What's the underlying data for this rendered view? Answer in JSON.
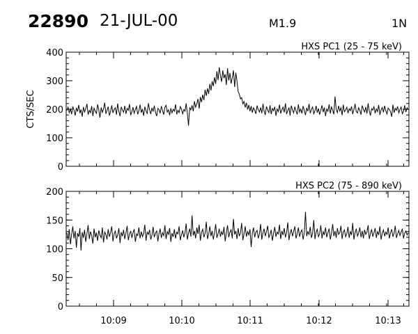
{
  "header": {
    "event_id": "22890",
    "date": "21-JUL-00",
    "flare_class": "M1.9",
    "location": "1N"
  },
  "chart_data": [
    {
      "type": "line",
      "title": "HXS PC1 (25 - 75 keV)",
      "ylabel": "CTS/SEC",
      "ylim": [
        0,
        400
      ],
      "yticks": [
        0,
        100,
        200,
        300,
        400
      ],
      "y_tick_labels": [
        "0",
        "100",
        "200",
        "300",
        "400"
      ],
      "xlim": [
        10.138,
        10.222
      ],
      "x_tick_labels": [
        "10:09",
        "10:10",
        "10:11",
        "10:12",
        "10:13"
      ],
      "series": [
        {
          "values": [
            195,
            207,
            188,
            201,
            183,
            210,
            197,
            178,
            205,
            192,
            215,
            186,
            199,
            174,
            208,
            190,
            202,
            219,
            181,
            196,
            188,
            211,
            176,
            204,
            193,
            185,
            217,
            198,
            171,
            206,
            189,
            201,
            223,
            184,
            196,
            209,
            178,
            192,
            214,
            187,
            199,
            205,
            181,
            220,
            193,
            176,
            208,
            197,
            189,
            212,
            184,
            203,
            196,
            218,
            179,
            191,
            207,
            186,
            199,
            210,
            182,
            195,
            216,
            188,
            201,
            177,
            209,
            194,
            185,
            221,
            198,
            183,
            205,
            192,
            213,
            189,
            176,
            203,
            199,
            186,
            211,
            195,
            181,
            207,
            214,
            190,
            198,
            179,
            204,
            187,
            200,
            193,
            217,
            182,
            196,
            188,
            209,
            201,
            184,
            199,
            193,
            221,
            186,
            143,
            205,
            198,
            214,
            193,
            228,
            207,
            219,
            236,
            202,
            243,
            225,
            251,
            232,
            268,
            247,
            273,
            254,
            289,
            266,
            298,
            281,
            312,
            289,
            333,
            302,
            347,
            318,
            296,
            336,
            309,
            323,
            285,
            344,
            301,
            327,
            290,
            311,
            336,
            278,
            328,
            297,
            262,
            253,
            236,
            241,
            219,
            227,
            206,
            223,
            199,
            215,
            193,
            211,
            188,
            205,
            197,
            184,
            213,
            199,
            190,
            206,
            186,
            219,
            194,
            180,
            210,
            197,
            188,
            214,
            183,
            203,
            195,
            209,
            177,
            201,
            192,
            216,
            185,
            198,
            207,
            189,
            221,
            183,
            195,
            206,
            178,
            213,
            198,
            187,
            209,
            194,
            182,
            217,
            190,
            201,
            185,
            211,
            196,
            179,
            205,
            193,
            219,
            186,
            199,
            208,
            184,
            195,
            212,
            188,
            203,
            181,
            197,
            214,
            190,
            206,
            176,
            201,
            193,
            217,
            185,
            208,
            197,
            182,
            245,
            199,
            188,
            212,
            194,
            205,
            179,
            216,
            191,
            198,
            207,
            186,
            202,
            195,
            210,
            183,
            199,
            219,
            192,
            187,
            205,
            196,
            181,
            213,
            200,
            190,
            208,
            185,
            221,
            194,
            178,
            202,
            197,
            209,
            186,
            201,
            192,
            215,
            180,
            198,
            206,
            189,
            212,
            195,
            183,
            204,
            199,
            191,
            174,
            216,
            188,
            203,
            196,
            210,
            187,
            199,
            208,
            184,
            193,
            214,
            190,
            205,
            198
          ]
        }
      ]
    },
    {
      "type": "line",
      "title": "HXS PC2 (75 - 890 keV)",
      "ylabel": "",
      "ylim": [
        0,
        200
      ],
      "yticks": [
        0,
        50,
        100,
        150,
        200
      ],
      "y_tick_labels": [
        "0",
        "50",
        "100",
        "150",
        "200"
      ],
      "xlim": [
        10.138,
        10.222
      ],
      "x_tick_labels": [
        "10:09",
        "10:10",
        "10:11",
        "10:12",
        "10:13"
      ],
      "series": [
        {
          "values": [
            128,
            115,
            134,
            108,
            125,
            139,
            118,
            131,
            102,
            127,
            121,
            136,
            97,
            129,
            119,
            133,
            112,
            126,
            141,
            117,
            130,
            123,
            109,
            135,
            120,
            128,
            114,
            132,
            124,
            119,
            137,
            111,
            129,
            125,
            116,
            134,
            121,
            128,
            139,
            113,
            126,
            131,
            118,
            124,
            136,
            110,
            129,
            122,
            133,
            117,
            127,
            140,
            115,
            125,
            131,
            119,
            128,
            134,
            112,
            126,
            123,
            137,
            118,
            130,
            121,
            127,
            142,
            114,
            129,
            125,
            133,
            116,
            124,
            138,
            120,
            127,
            131,
            113,
            126,
            135,
            119,
            128,
            123,
            141,
            117,
            130,
            125,
            136,
            112,
            127,
            121,
            134,
            118,
            129,
            126,
            139,
            115,
            124,
            132,
            120,
            128,
            144,
            116,
            127,
            135,
            121,
            158,
            123,
            131,
            118,
            137,
            126,
            142,
            114,
            129,
            134,
            120,
            127,
            147,
            117,
            125,
            139,
            122,
            131,
            116,
            128,
            143,
            119,
            126,
            135,
            121,
            130,
            124,
            138,
            113,
            127,
            141,
            120,
            129,
            133,
            118,
            152,
            125,
            131,
            117,
            136,
            122,
            128,
            145,
            115,
            126,
            139,
            121,
            130,
            124,
            134,
            103,
            127,
            137,
            120,
            129,
            132,
            118,
            126,
            143,
            116,
            128,
            135,
            122,
            130,
            140,
            119,
            125,
            133,
            114,
            127,
            138,
            121,
            129,
            126,
            142,
            117,
            131,
            124,
            136,
            120,
            128,
            146,
            115,
            127,
            134,
            122,
            130,
            139,
            118,
            126,
            137,
            121,
            129,
            133,
            116,
            128,
            164,
            122,
            130,
            125,
            138,
            119,
            127,
            150,
            117,
            129,
            134,
            121,
            126,
            141,
            118,
            130,
            124,
            137,
            120,
            128,
            135,
            116,
            127,
            143,
            122,
            131,
            119,
            136,
            125,
            128,
            140,
            117,
            129,
            133,
            121,
            126,
            138,
            119,
            130,
            124,
            145,
            116,
            128,
            135,
            122,
            127,
            137,
            120,
            131,
            118,
            133,
            125,
            129,
            141,
            117,
            126,
            134,
            121,
            128,
            136,
            119,
            130,
            124,
            139,
            116,
            127,
            133,
            122,
            129,
            125,
            137,
            118,
            128,
            134,
            121,
            127,
            140,
            119,
            126,
            132,
            123,
            129,
            135,
            118,
            127,
            131,
            124,
            128
          ]
        }
      ]
    }
  ]
}
